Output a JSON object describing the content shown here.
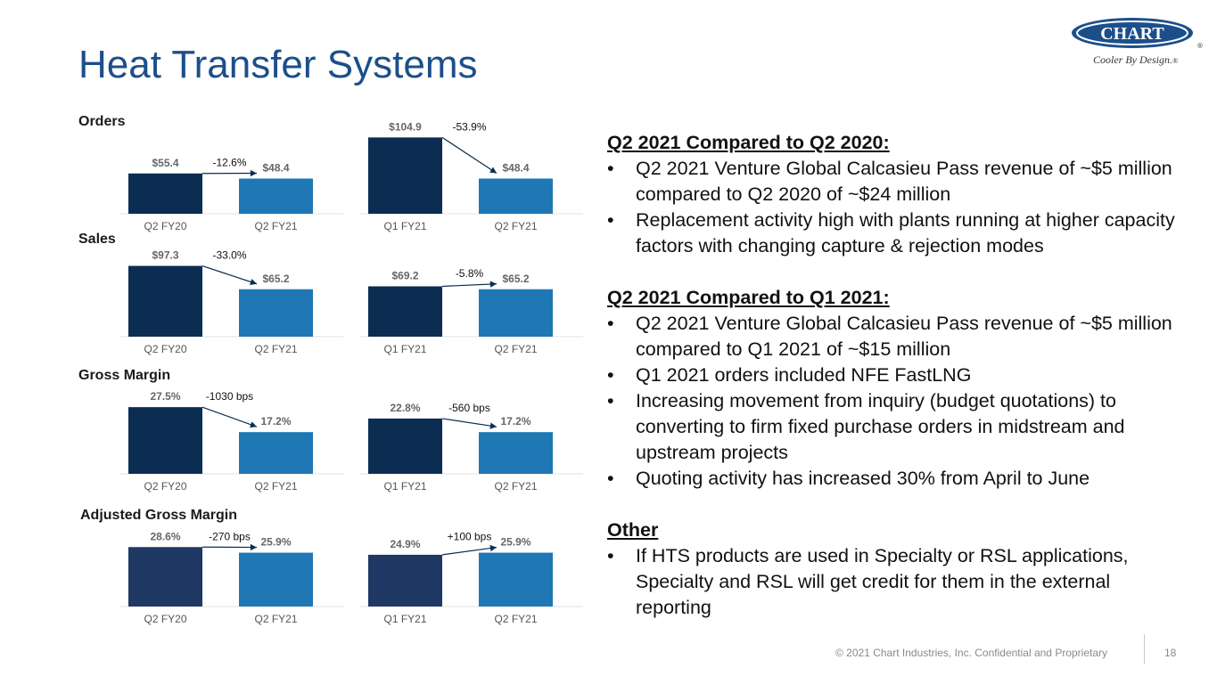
{
  "title": "Heat Transfer Systems",
  "logo": {
    "wordmark": "CHART",
    "registered": "®",
    "tagline": "Cooler By Design.",
    "tagline_registered": "®"
  },
  "colors": {
    "title": "#1c4f8a",
    "prior_bar": "#0b2d52",
    "prior_bar_adjusted": "#1f3864",
    "current_bar": "#1f78b4"
  },
  "sections": [
    {
      "label": "Orders"
    },
    {
      "label": "Sales"
    },
    {
      "label": "Gross Margin"
    },
    {
      "label": "Adjusted Gross Margin"
    }
  ],
  "chart_data": [
    {
      "type": "bar",
      "section": "Orders",
      "categories": [
        "Q2 FY20",
        "Q2 FY21"
      ],
      "values": [
        55.4,
        48.4
      ],
      "data_labels": [
        "$55.4",
        "$48.4"
      ],
      "change_label": "-12.6%"
    },
    {
      "type": "bar",
      "section": "Orders",
      "categories": [
        "Q1 FY21",
        "Q2 FY21"
      ],
      "values": [
        104.9,
        48.4
      ],
      "data_labels": [
        "$104.9",
        "$48.4"
      ],
      "change_label": "-53.9%"
    },
    {
      "type": "bar",
      "section": "Sales",
      "categories": [
        "Q2 FY20",
        "Q2 FY21"
      ],
      "values": [
        97.3,
        65.2
      ],
      "data_labels": [
        "$97.3",
        "$65.2"
      ],
      "change_label": "-33.0%"
    },
    {
      "type": "bar",
      "section": "Sales",
      "categories": [
        "Q1 FY21",
        "Q2 FY21"
      ],
      "values": [
        69.2,
        65.2
      ],
      "data_labels": [
        "$69.2",
        "$65.2"
      ],
      "change_label": "-5.8%"
    },
    {
      "type": "bar",
      "section": "Gross Margin",
      "categories": [
        "Q2 FY20",
        "Q2 FY21"
      ],
      "values": [
        27.5,
        17.2
      ],
      "data_labels": [
        "27.5%",
        "17.2%"
      ],
      "change_label": "-1030 bps"
    },
    {
      "type": "bar",
      "section": "Gross Margin",
      "categories": [
        "Q1 FY21",
        "Q2 FY21"
      ],
      "values": [
        22.8,
        17.2
      ],
      "data_labels": [
        "22.8%",
        "17.2%"
      ],
      "change_label": "-560 bps"
    },
    {
      "type": "bar",
      "section": "Adjusted Gross Margin",
      "categories": [
        "Q2 FY20",
        "Q2 FY21"
      ],
      "values": [
        28.6,
        25.9
      ],
      "data_labels": [
        "28.6%",
        "25.9%"
      ],
      "change_label": "-270 bps"
    },
    {
      "type": "bar",
      "section": "Adjusted Gross Margin",
      "categories": [
        "Q1 FY21",
        "Q2 FY21"
      ],
      "values": [
        24.9,
        25.9
      ],
      "data_labels": [
        "24.9%",
        "25.9%"
      ],
      "change_label": "+100 bps"
    }
  ],
  "commentary": [
    {
      "heading": "Q2 2021 Compared to Q2 2020:",
      "bullets": [
        "Q2 2021 Venture Global Calcasieu Pass revenue of ~$5 million compared to Q2 2020 of ~$24 million",
        "Replacement activity high with plants running at higher capacity factors with changing capture & rejection modes"
      ]
    },
    {
      "heading": "Q2 2021 Compared to Q1 2021:",
      "bullets": [
        "Q2 2021 Venture Global Calcasieu Pass revenue of ~$5 million compared to Q1 2021 of ~$15 million",
        "Q1 2021 orders included NFE FastLNG",
        "Increasing movement from inquiry (budget quotations) to converting to firm fixed purchase orders in midstream and upstream projects",
        "Quoting activity has increased 30% from April to June"
      ]
    },
    {
      "heading": "Other",
      "bullets": [
        "If HTS products are used in Specialty or RSL applications, Specialty and RSL will get credit for them in the external reporting"
      ]
    }
  ],
  "footer": {
    "copyright": "© 2021 Chart Industries, Inc. Confidential and Proprietary",
    "page_number": "18"
  }
}
